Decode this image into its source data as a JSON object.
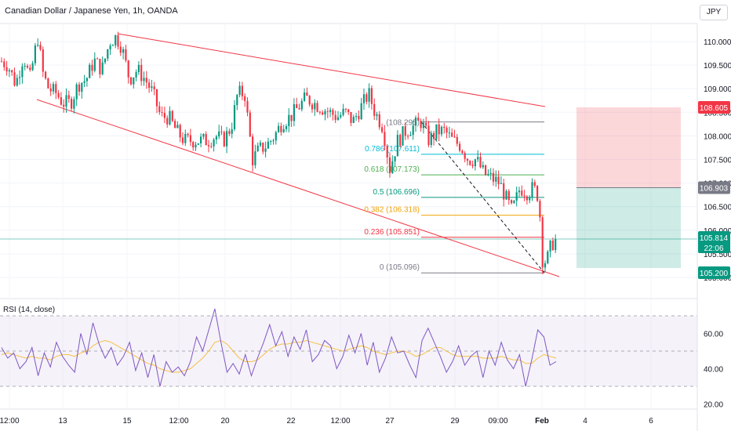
{
  "header": {
    "title": "Canadian Dollar / Japanese Yen, 1h, OANDA",
    "currency": "JPY"
  },
  "price_badges": {
    "upper": {
      "value": "108.605",
      "color": "#f23645"
    },
    "entry": {
      "value": "106.903",
      "color": "#787b86"
    },
    "current": {
      "value": "105.814",
      "countdown": "22:06",
      "color": "#089981"
    },
    "lower": {
      "value": "105.200",
      "color": "#089981"
    }
  },
  "rsi": {
    "label": "RSI (14, close)"
  },
  "chart_data": [
    {
      "type": "candlestick",
      "title": "Canadian Dollar / Japanese Yen, 1h, OANDA",
      "ylim": [
        104.8,
        110.4
      ],
      "y_ticks": [
        "105.000",
        "105.500",
        "106.000",
        "106.500",
        "107.000",
        "107.500",
        "108.000",
        "108.500",
        "109.000",
        "109.500",
        "110.000"
      ],
      "x_ticks": [
        "12:00",
        "13",
        "15",
        "12:00",
        "20",
        "22",
        "12:00",
        "27",
        "29",
        "09:00",
        "Feb",
        "4",
        "6"
      ],
      "close_path": [
        [
          0,
          109.6
        ],
        [
          10,
          109.5
        ],
        [
          20,
          109.1
        ],
        [
          30,
          109.7
        ],
        [
          38,
          109.2
        ],
        [
          48,
          110.1
        ],
        [
          55,
          109.3
        ],
        [
          62,
          109.0
        ],
        [
          72,
          108.9
        ],
        [
          80,
          108.7
        ],
        [
          90,
          108.7
        ],
        [
          100,
          109.1
        ],
        [
          110,
          109.2
        ],
        [
          120,
          109.6
        ],
        [
          130,
          109.4
        ],
        [
          140,
          110.0
        ],
        [
          148,
          110.1
        ],
        [
          155,
          109.9
        ],
        [
          165,
          109.2
        ],
        [
          175,
          109.4
        ],
        [
          185,
          109.2
        ],
        [
          195,
          108.9
        ],
        [
          205,
          108.4
        ],
        [
          215,
          108.4
        ],
        [
          225,
          108.1
        ],
        [
          235,
          107.9
        ],
        [
          245,
          107.9
        ],
        [
          255,
          107.9
        ],
        [
          265,
          107.9
        ],
        [
          275,
          108.0
        ],
        [
          285,
          107.9
        ],
        [
          295,
          108.2
        ],
        [
          303,
          108.9
        ],
        [
          312,
          108.9
        ],
        [
          322,
          107.5
        ],
        [
          330,
          107.7
        ],
        [
          340,
          107.8
        ],
        [
          350,
          108.0
        ],
        [
          360,
          108.3
        ],
        [
          370,
          108.4
        ],
        [
          380,
          108.6
        ],
        [
          390,
          108.8
        ],
        [
          400,
          108.7
        ],
        [
          410,
          108.6
        ],
        [
          420,
          108.5
        ],
        [
          430,
          108.4
        ],
        [
          440,
          108.5
        ],
        [
          450,
          108.3
        ],
        [
          460,
          108.6
        ],
        [
          470,
          108.9
        ],
        [
          478,
          108.5
        ],
        [
          488,
          108.2
        ],
        [
          497,
          107.3
        ],
        [
          507,
          107.9
        ],
        [
          517,
          108.1
        ],
        [
          527,
          108.2
        ],
        [
          537,
          108.3
        ],
        [
          547,
          107.9
        ],
        [
          557,
          108.1
        ],
        [
          567,
          108.1
        ],
        [
          577,
          107.9
        ],
        [
          587,
          107.8
        ],
        [
          597,
          107.5
        ],
        [
          607,
          107.5
        ],
        [
          617,
          107.2
        ],
        [
          627,
          107.1
        ],
        [
          637,
          107.0
        ],
        [
          647,
          106.6
        ],
        [
          653,
          106.4
        ],
        [
          663,
          106.9
        ],
        [
          673,
          106.8
        ],
        [
          680,
          106.9
        ],
        [
          687,
          106.7
        ],
        [
          692,
          105.3
        ],
        [
          698,
          105.4
        ],
        [
          703,
          105.7
        ],
        [
          709,
          105.8
        ]
      ],
      "fibonacci": [
        {
          "ratio": "0.786",
          "level": "(107.611)",
          "value": 107.611,
          "color": "#00bcd4"
        },
        {
          "ratio": "0.618",
          "level": "(107.173)",
          "value": 107.173,
          "color": "#4caf50"
        },
        {
          "ratio": "0.5",
          "level": "(106.696)",
          "value": 106.696,
          "color": "#089981"
        },
        {
          "ratio": "0.382",
          "level": "(106.318)",
          "value": 106.318,
          "color": "#f0a30a"
        },
        {
          "ratio": "0.236",
          "level": "(105.851)",
          "value": 105.851,
          "color": "#f23645"
        },
        {
          "ratio": "0",
          "level": "(105.096)",
          "value": 105.096,
          "color": "#787b86"
        }
      ],
      "fib_top": {
        "level": "(108.295)",
        "value": 108.295
      },
      "position": {
        "target": 108.605,
        "entry": 106.903,
        "stop": 105.2
      },
      "current_price": 105.814
    },
    {
      "type": "line",
      "title": "RSI (14, close)",
      "ylim": [
        15,
        80
      ],
      "y_ticks": [
        "20.00",
        "40.00",
        "60.00"
      ],
      "bands": [
        30,
        50,
        70
      ],
      "rsi_series": [
        52,
        46,
        49,
        40,
        44,
        52,
        36,
        49,
        41,
        55,
        47,
        42,
        38,
        60,
        48,
        66,
        54,
        46,
        52,
        42,
        47,
        55,
        39,
        49,
        35,
        48,
        30,
        44,
        38,
        41,
        36,
        44,
        58,
        50,
        62,
        74,
        55,
        38,
        43,
        37,
        48,
        36,
        46,
        55,
        65,
        53,
        61,
        47,
        58,
        51,
        62,
        44,
        48,
        56,
        53,
        40,
        47,
        59,
        49,
        60,
        42,
        55,
        38,
        46,
        58,
        49,
        50,
        42,
        35,
        56,
        63,
        55,
        47,
        38,
        44,
        53,
        42,
        47,
        50,
        35,
        50,
        42,
        55,
        45,
        40,
        48,
        30,
        45,
        62,
        58,
        42,
        44
      ],
      "ma_series": [
        48,
        49,
        48,
        47,
        46,
        47,
        46,
        46,
        45,
        47,
        48,
        48,
        47,
        49,
        50,
        53,
        55,
        56,
        55,
        53,
        51,
        49,
        47,
        45,
        43,
        42,
        40,
        39,
        38,
        38,
        39,
        40,
        43,
        46,
        50,
        55,
        56,
        54,
        50,
        46,
        44,
        44,
        45,
        48,
        51,
        53,
        54,
        54,
        55,
        55,
        56,
        55,
        54,
        53,
        52,
        51,
        50,
        51,
        52,
        53,
        52,
        50,
        49,
        48,
        49,
        50,
        50,
        49,
        47,
        48,
        50,
        52,
        52,
        50,
        48,
        47,
        47,
        47,
        47,
        46,
        46,
        46,
        47,
        46,
        45,
        45,
        43,
        43,
        46,
        48,
        47,
        46
      ]
    }
  ]
}
